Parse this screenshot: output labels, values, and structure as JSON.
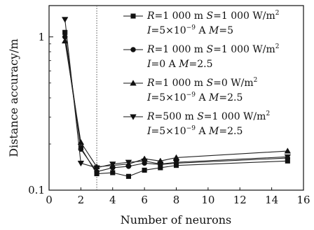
{
  "chart_data": {
    "type": "line",
    "xlabel": "Number of neurons",
    "ylabel": "Distance accuracy/m",
    "xlim": [
      0,
      16
    ],
    "ylim": [
      0.1,
      1.6
    ],
    "yscale": "log",
    "xticks": [
      0,
      2,
      4,
      6,
      8,
      10,
      12,
      14,
      16
    ],
    "xtick_labels": [
      "0",
      "2",
      "4",
      "6",
      "8",
      "10",
      "12",
      "14",
      "16"
    ],
    "yticks": [
      0.1,
      1
    ],
    "ytick_labels": [
      "0.1",
      "1"
    ],
    "vline": {
      "x": 3,
      "style": "dotted"
    },
    "legend_position": "top-right",
    "series": [
      {
        "marker": "square",
        "legend": {
          "R": "1 000 m",
          "S": "1 000 W/m",
          "I": "5×10",
          "I_exp": "−9",
          "M": "5"
        },
        "x": [
          1,
          2,
          3,
          4,
          5,
          6,
          7,
          8,
          15
        ],
        "y": [
          1.07,
          0.19,
          0.128,
          0.13,
          0.123,
          0.135,
          0.14,
          0.145,
          0.155
        ]
      },
      {
        "marker": "circle",
        "legend": {
          "R": "1 000 m",
          "S": "1 000 W/m",
          "I": "0 A",
          "M": "2.5"
        },
        "x": [
          1,
          2,
          3,
          4,
          5,
          6,
          7,
          8,
          15
        ],
        "y": [
          1.0,
          0.185,
          0.132,
          0.14,
          0.143,
          0.15,
          0.147,
          0.15,
          0.162
        ]
      },
      {
        "marker": "triangle-up",
        "legend": {
          "R": "1 000 m",
          "S": "0 W/m",
          "I": "5×10",
          "I_exp": "−9",
          "M": "2.5"
        },
        "x": [
          1,
          2,
          3,
          4,
          5,
          6,
          7,
          8,
          15
        ],
        "y": [
          0.94,
          0.205,
          0.142,
          0.145,
          0.148,
          0.16,
          0.155,
          0.163,
          0.18
        ]
      },
      {
        "marker": "triangle-down",
        "legend": {
          "R": "500 m",
          "S": "1 000 W/m",
          "I": "5×10",
          "I_exp": "−9",
          "M": "2.5"
        },
        "x": [
          1,
          2,
          3,
          4,
          5,
          6,
          7,
          8,
          15
        ],
        "y": [
          1.3,
          0.15,
          0.14,
          0.148,
          0.152,
          0.155,
          0.148,
          0.152,
          0.165
        ]
      }
    ]
  }
}
